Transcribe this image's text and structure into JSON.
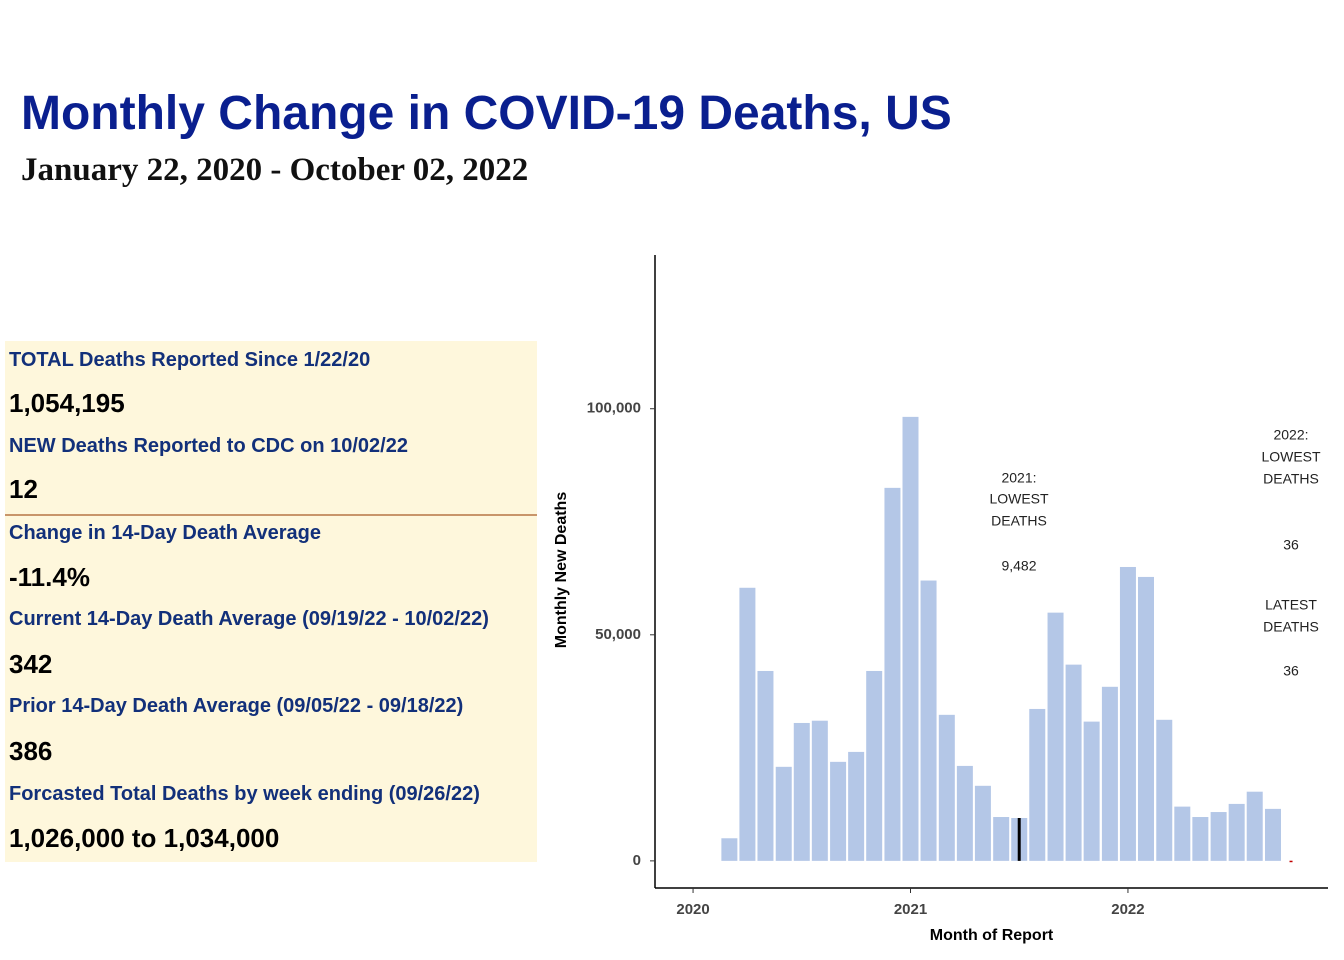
{
  "header": {
    "title": "Monthly Change in COVID-19 Deaths, US",
    "subtitle": "January 22, 2020 - October 02, 2022"
  },
  "stats": [
    {
      "label": "TOTAL Deaths Reported Since 1/22/20",
      "value": "1,054,195"
    },
    {
      "label": "NEW Deaths Reported to CDC on 10/02/22",
      "value": "12"
    },
    {
      "label": "Change in 14-Day Death Average",
      "value": "-11.4%"
    },
    {
      "label": "Current 14-Day Death Average (09/19/22 - 10/02/22)",
      "value": "342"
    },
    {
      "label": "Prior 14-Day Death Average (09/05/22 - 09/18/22)",
      "value": "386"
    },
    {
      "label": "Forcasted Total Deaths by week ending (09/26/22)",
      "value": "1,026,000 to 1,034,000"
    }
  ],
  "chart_data": {
    "type": "bar",
    "x_label": "Month of Report",
    "y_label": "Monthly New Deaths",
    "series": [
      {
        "color": "#b4c7e7",
        "x": [
          2020.167,
          2020.25,
          2020.333,
          2020.417,
          2020.5,
          2020.583,
          2020.667,
          2020.75,
          2020.833,
          2020.917,
          2021.0,
          2021.083,
          2021.167,
          2021.25,
          2021.333,
          2021.417,
          2021.5,
          2021.583,
          2021.667,
          2021.75,
          2021.833,
          2021.917,
          2022.0,
          2022.083,
          2022.167,
          2022.25,
          2022.333,
          2022.417,
          2022.5,
          2022.583,
          2022.667
        ],
        "values": [
          5000,
          60400,
          42000,
          20800,
          30500,
          31000,
          21900,
          24100,
          42000,
          82500,
          98200,
          62000,
          32300,
          21000,
          16600,
          9700,
          9482,
          33600,
          54900,
          43400,
          30800,
          38500,
          65000,
          62800,
          31200,
          12000,
          9700,
          10800,
          12600,
          15300,
          11500
        ]
      },
      {
        "color": "#000000",
        "x": [
          2021.5
        ],
        "values": [
          9482
        ]
      },
      {
        "color": "#c00000",
        "x": [
          2022.75
        ],
        "values": [
          36
        ]
      }
    ],
    "annotations": [
      {
        "lines": [
          "2021:",
          "LOWEST",
          "DEATHS",
          "9,482"
        ]
      },
      {
        "lines": [
          "2022:",
          "LOWEST",
          "DEATHS",
          "36"
        ]
      },
      {
        "lines": [
          "LATEST",
          "DEATHS",
          "36"
        ]
      }
    ],
    "xlim": [
      2019.825,
      2022.92
    ],
    "xticks": [
      2020,
      2021,
      2022
    ],
    "ylim": [
      -6000,
      134000
    ],
    "yticks": [
      0,
      {
        "value": 50000,
        "label": "50,000"
      },
      {
        "value": 100000,
        "label": "100,000"
      }
    ],
    "grid": false
  }
}
